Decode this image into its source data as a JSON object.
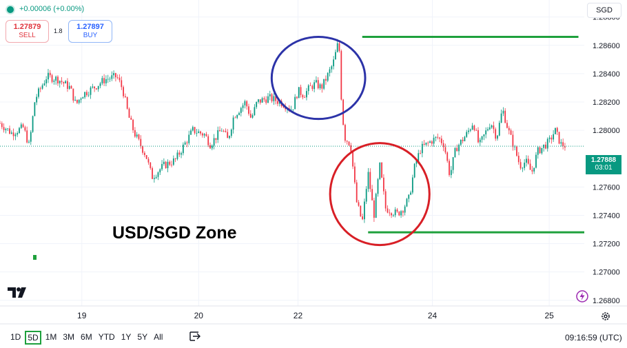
{
  "header": {
    "change": "+0.00006 (+0.00%)",
    "sell": {
      "price": "1.27879",
      "label": "SELL"
    },
    "buy": {
      "price": "1.27897",
      "label": "BUY"
    },
    "spread": "1.8",
    "currency": "SGD"
  },
  "annotation": "USD/SGD Zone",
  "current_price": {
    "value": "1.27888",
    "countdown": "03:01"
  },
  "toolbar": {
    "ranges": [
      "1D",
      "5D",
      "1M",
      "3M",
      "6M",
      "YTD",
      "1Y",
      "5Y",
      "All"
    ],
    "active_range": "5D",
    "time": "09:16:59 (UTC)"
  },
  "icons": {
    "logo": "tradingview-logo-icon",
    "settings": "gear-icon",
    "compare": "compare-icon",
    "bolt": "lightning-icon"
  },
  "colors": {
    "up": "#089981",
    "down": "#f23645",
    "resistance": "#1ea03c",
    "top_circle": "#2c33a8",
    "bottom_circle": "#d81f26"
  },
  "chart_data": {
    "type": "candlestick",
    "symbol": "USD/SGD",
    "y_ticks": [
      "1.28800",
      "1.28600",
      "1.28400",
      "1.28200",
      "1.28000",
      "1.27600",
      "1.27400",
      "1.27200",
      "1.27000",
      "1.26800"
    ],
    "x_ticks": [
      "19",
      "20",
      "22",
      "24",
      "25"
    ],
    "ylim": [
      1.2676,
      1.2892
    ],
    "x_range": [
      0,
      100
    ],
    "x_tick_positions": [
      14,
      34,
      51,
      74,
      94
    ],
    "grid": true,
    "horizontal_levels": [
      {
        "price": 1.2866,
        "x_start": 62,
        "x_end": 99
      },
      {
        "price": 1.2728,
        "x_start": 63,
        "x_end": 100
      }
    ],
    "circles": [
      {
        "cx": 54.5,
        "cy": 1.2837,
        "rx": 8,
        "ry": 0.0029,
        "color": "#2c33a8"
      },
      {
        "cx": 65,
        "cy": 1.2755,
        "rx": 8.5,
        "ry": 0.0036,
        "color": "#d81f26"
      }
    ],
    "last_price": 1.27888,
    "price_path": [
      [
        0,
        1.2805
      ],
      [
        2,
        1.2798
      ],
      [
        4,
        1.2802
      ],
      [
        5,
        1.2789
      ],
      [
        6,
        1.2822
      ],
      [
        8,
        1.2838
      ],
      [
        10,
        1.2836
      ],
      [
        12,
        1.283
      ],
      [
        13,
        1.2818
      ],
      [
        14,
        1.2825
      ],
      [
        16,
        1.283
      ],
      [
        18,
        1.2836
      ],
      [
        20,
        1.2838
      ],
      [
        21,
        1.2829
      ],
      [
        22,
        1.281
      ],
      [
        23,
        1.2798
      ],
      [
        24,
        1.279
      ],
      [
        25,
        1.2782
      ],
      [
        26,
        1.2767
      ],
      [
        28,
        1.2775
      ],
      [
        30,
        1.2779
      ],
      [
        31,
        1.2786
      ],
      [
        32,
        1.2793
      ],
      [
        33,
        1.28
      ],
      [
        35,
        1.2797
      ],
      [
        36,
        1.279
      ],
      [
        38,
        1.2801
      ],
      [
        39,
        1.2793
      ],
      [
        40,
        1.281
      ],
      [
        42,
        1.282
      ],
      [
        43,
        1.2808
      ],
      [
        44,
        1.282
      ],
      [
        46,
        1.2823
      ],
      [
        48,
        1.282
      ],
      [
        50,
        1.2815
      ],
      [
        51,
        1.2828
      ],
      [
        52,
        1.2825
      ],
      [
        53,
        1.283
      ],
      [
        54,
        1.2833
      ],
      [
        55,
        1.283
      ],
      [
        56,
        1.2838
      ],
      [
        57,
        1.2847
      ],
      [
        58,
        1.2864
      ],
      [
        58.5,
        1.2815
      ],
      [
        59,
        1.2795
      ],
      [
        60,
        1.279
      ],
      [
        61,
        1.275
      ],
      [
        62,
        1.2735
      ],
      [
        63,
        1.277
      ],
      [
        64,
        1.274
      ],
      [
        65,
        1.2775
      ],
      [
        66,
        1.2745
      ],
      [
        67,
        1.2743
      ],
      [
        68,
        1.2741
      ],
      [
        69,
        1.2745
      ],
      [
        70,
        1.2752
      ],
      [
        71,
        1.2775
      ],
      [
        72,
        1.2787
      ],
      [
        74,
        1.2793
      ],
      [
        75,
        1.2795
      ],
      [
        76,
        1.279
      ],
      [
        77,
        1.2768
      ],
      [
        78,
        1.2787
      ],
      [
        80,
        1.2798
      ],
      [
        81,
        1.2806
      ],
      [
        82,
        1.2789
      ],
      [
        84,
        1.2806
      ],
      [
        85,
        1.2795
      ],
      [
        86,
        1.2815
      ],
      [
        87,
        1.28
      ],
      [
        88,
        1.2788
      ],
      [
        89,
        1.2775
      ],
      [
        90,
        1.2778
      ],
      [
        91,
        1.277
      ],
      [
        92,
        1.2785
      ],
      [
        94,
        1.2792
      ],
      [
        95,
        1.28
      ],
      [
        96,
        1.279
      ],
      [
        97,
        1.2789
      ]
    ]
  }
}
